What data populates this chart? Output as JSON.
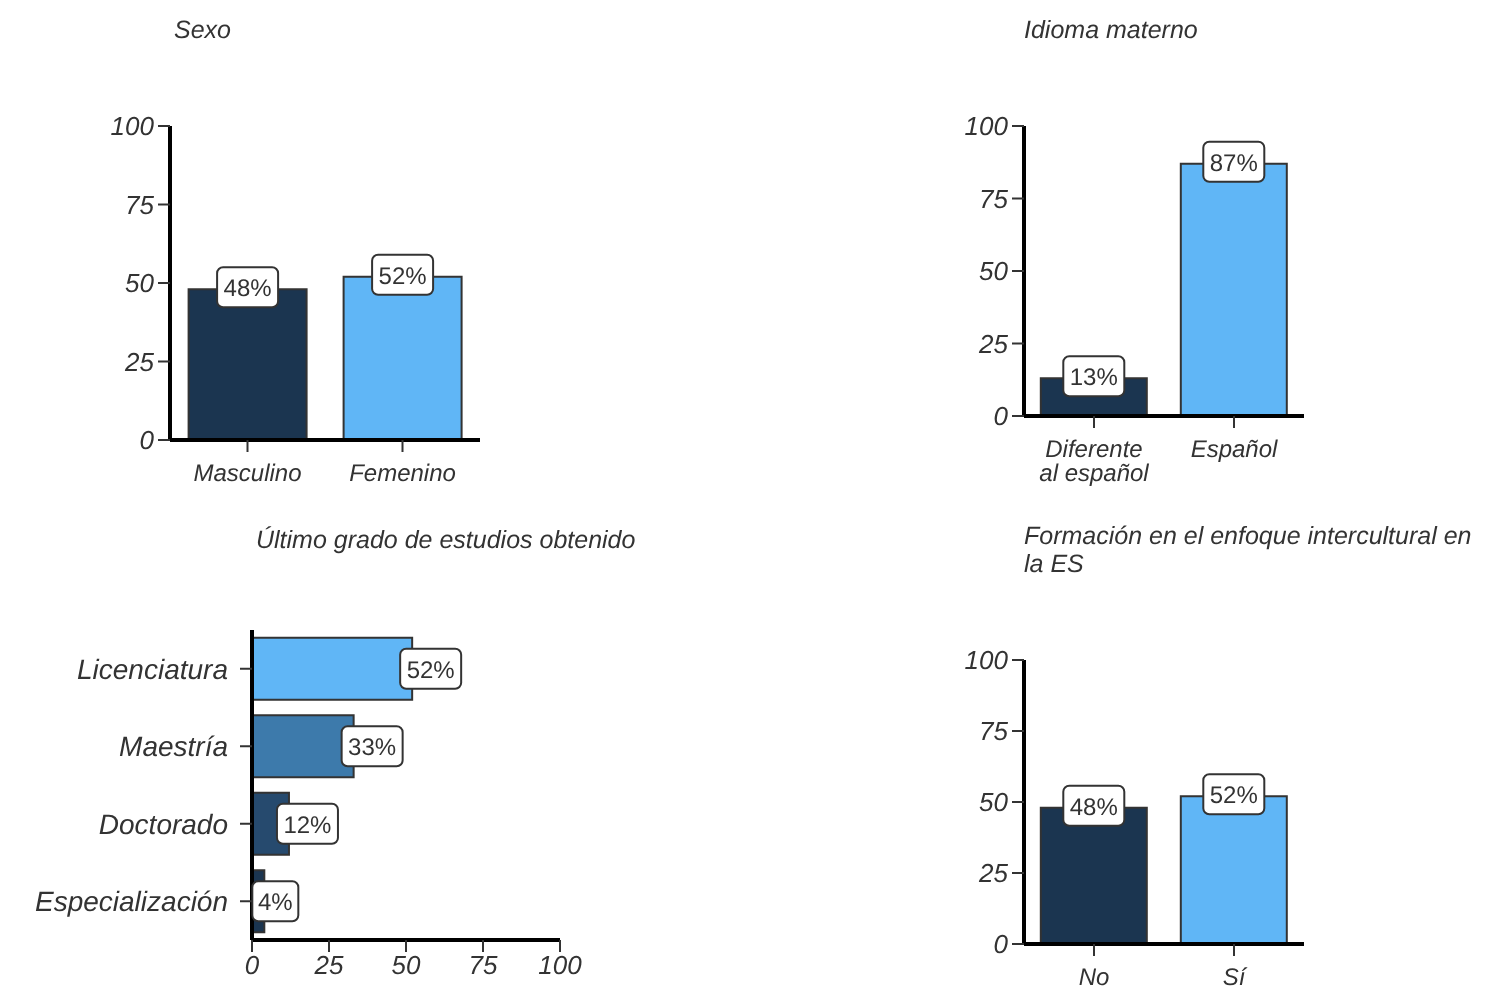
{
  "chart_data": [
    {
      "type": "bar",
      "title": "Sexo",
      "categories": [
        "Masculino",
        "Femenino"
      ],
      "values": [
        48,
        52
      ],
      "colors": [
        "#1b3550",
        "#60b6f6"
      ],
      "value_labels": [
        "48%",
        "52%"
      ],
      "ylim": [
        0,
        100
      ],
      "yticks": [
        0,
        25,
        50,
        75,
        100
      ],
      "grid": false,
      "legend": false
    },
    {
      "type": "bar",
      "title": "Idioma materno",
      "categories": [
        "Diferente al español",
        "Español"
      ],
      "values": [
        13,
        87
      ],
      "colors": [
        "#1b3550",
        "#60b6f6"
      ],
      "value_labels": [
        "13%",
        "87%"
      ],
      "ylim": [
        0,
        100
      ],
      "yticks": [
        0,
        25,
        50,
        75,
        100
      ],
      "grid": false,
      "legend": false
    },
    {
      "type": "bar",
      "orientation": "horizontal",
      "title": "Último grado de estudios obtenido",
      "categories": [
        "Licenciatura",
        "Maestría",
        "Doctorado",
        "Especialización"
      ],
      "values": [
        52,
        33,
        12,
        4
      ],
      "colors": [
        "#60b6f6",
        "#3d7aab",
        "#264a6e",
        "#1b3550"
      ],
      "value_labels": [
        "52%",
        "33%",
        "12%",
        "4%"
      ],
      "xlim": [
        0,
        100
      ],
      "xticks": [
        0,
        25,
        50,
        75,
        100
      ],
      "grid": false,
      "legend": false
    },
    {
      "type": "bar",
      "title": "Formación en el enfoque intercultural en la ES",
      "categories": [
        "No",
        "Sí"
      ],
      "values": [
        48,
        52
      ],
      "colors": [
        "#1b3550",
        "#60b6f6"
      ],
      "value_labels": [
        "48%",
        "52%"
      ],
      "ylim": [
        0,
        100
      ],
      "yticks": [
        0,
        25,
        50,
        75,
        100
      ],
      "grid": false,
      "legend": false
    }
  ]
}
